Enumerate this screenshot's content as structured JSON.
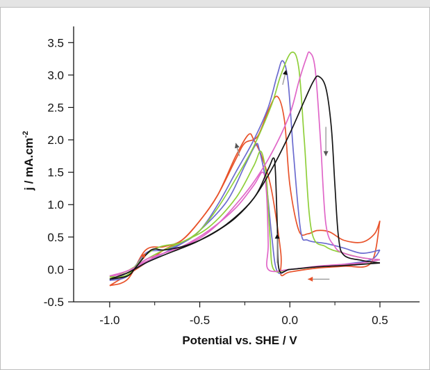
{
  "chart_data": {
    "type": "line",
    "title": "",
    "xlabel": "Potential vs. SHE / V",
    "ylabel_main": "j / mA.cm",
    "ylabel_sup": "-2",
    "xlim": [
      -1.2,
      0.72
    ],
    "ylim": [
      -0.5,
      3.75
    ],
    "x_ticks": [
      -1.0,
      -0.5,
      0.0,
      0.5
    ],
    "x_tick_labels": [
      "-1.0",
      "-0.5",
      "0.0",
      "0.5"
    ],
    "y_ticks": [
      -0.5,
      0.0,
      0.5,
      1.0,
      1.5,
      2.0,
      2.5,
      3.0,
      3.5
    ],
    "y_tick_labels": [
      "-0.5",
      "0.0",
      "0.5",
      "1.0",
      "1.5",
      "2.0",
      "2.5",
      "3.0",
      "3.5"
    ],
    "grid": false,
    "legend": "none",
    "series": [
      {
        "color": "#e8522a",
        "forward": [
          [
            -1.0,
            -0.25
          ],
          [
            -0.9,
            -0.15
          ],
          [
            -0.8,
            0.3
          ],
          [
            -0.7,
            0.35
          ],
          [
            -0.6,
            0.45
          ],
          [
            -0.5,
            0.75
          ],
          [
            -0.4,
            1.15
          ],
          [
            -0.3,
            1.7
          ],
          [
            -0.25,
            1.95
          ],
          [
            -0.18,
            2.05
          ],
          [
            -0.12,
            2.45
          ],
          [
            -0.07,
            2.67
          ],
          [
            -0.03,
            2.3
          ],
          [
            0.0,
            1.3
          ],
          [
            0.05,
            0.6
          ],
          [
            0.1,
            0.55
          ],
          [
            0.15,
            0.6
          ],
          [
            0.22,
            0.58
          ],
          [
            0.3,
            0.45
          ],
          [
            0.4,
            0.42
          ],
          [
            0.47,
            0.55
          ],
          [
            0.5,
            0.75
          ]
        ],
        "reverse": [
          [
            0.5,
            0.75
          ],
          [
            0.45,
            0.1
          ],
          [
            0.3,
            0.05
          ],
          [
            0.15,
            0.02
          ],
          [
            0.0,
            -0.04
          ],
          [
            -0.05,
            -0.08
          ],
          [
            -0.05,
            0.25
          ],
          [
            -0.1,
            1.2
          ],
          [
            -0.15,
            1.7
          ],
          [
            -0.2,
            2.0
          ],
          [
            -0.23,
            2.08
          ],
          [
            -0.3,
            1.75
          ],
          [
            -0.4,
            1.15
          ],
          [
            -0.5,
            0.75
          ],
          [
            -0.6,
            0.45
          ],
          [
            -0.7,
            0.3
          ],
          [
            -0.8,
            0.1
          ],
          [
            -0.9,
            -0.08
          ],
          [
            -1.0,
            -0.25
          ]
        ]
      },
      {
        "color": "#6b6bcf",
        "forward": [
          [
            -1.0,
            -0.17
          ],
          [
            -0.9,
            -0.1
          ],
          [
            -0.8,
            0.25
          ],
          [
            -0.7,
            0.3
          ],
          [
            -0.6,
            0.4
          ],
          [
            -0.5,
            0.6
          ],
          [
            -0.4,
            1.0
          ],
          [
            -0.3,
            1.5
          ],
          [
            -0.2,
            2.0
          ],
          [
            -0.12,
            2.5
          ],
          [
            -0.07,
            3.0
          ],
          [
            -0.04,
            3.22
          ],
          [
            -0.01,
            2.9
          ],
          [
            0.02,
            1.8
          ],
          [
            0.06,
            0.6
          ],
          [
            0.1,
            0.45
          ],
          [
            0.2,
            0.4
          ],
          [
            0.3,
            0.33
          ],
          [
            0.4,
            0.25
          ],
          [
            0.5,
            0.3
          ]
        ],
        "reverse": [
          [
            0.5,
            0.3
          ],
          [
            0.45,
            0.15
          ],
          [
            0.3,
            0.08
          ],
          [
            0.15,
            0.04
          ],
          [
            0.0,
            0.0
          ],
          [
            -0.07,
            -0.03
          ],
          [
            -0.1,
            0.5
          ],
          [
            -0.13,
            1.3
          ],
          [
            -0.17,
            1.85
          ],
          [
            -0.19,
            1.92
          ],
          [
            -0.25,
            1.6
          ],
          [
            -0.35,
            1.05
          ],
          [
            -0.5,
            0.6
          ],
          [
            -0.6,
            0.4
          ],
          [
            -0.7,
            0.25
          ],
          [
            -0.8,
            0.1
          ],
          [
            -0.9,
            -0.05
          ],
          [
            -1.0,
            -0.17
          ]
        ]
      },
      {
        "color": "#8fcf3a",
        "forward": [
          [
            -1.0,
            -0.12
          ],
          [
            -0.9,
            -0.08
          ],
          [
            -0.8,
            0.22
          ],
          [
            -0.72,
            0.35
          ],
          [
            -0.6,
            0.42
          ],
          [
            -0.5,
            0.6
          ],
          [
            -0.4,
            0.95
          ],
          [
            -0.3,
            1.4
          ],
          [
            -0.2,
            1.9
          ],
          [
            -0.1,
            2.55
          ],
          [
            -0.05,
            3.0
          ],
          [
            0.01,
            3.35
          ],
          [
            0.05,
            3.1
          ],
          [
            0.08,
            2.0
          ],
          [
            0.12,
            0.6
          ],
          [
            0.2,
            0.35
          ],
          [
            0.3,
            0.25
          ],
          [
            0.4,
            0.18
          ],
          [
            0.5,
            0.15
          ]
        ],
        "reverse": [
          [
            0.5,
            0.15
          ],
          [
            0.4,
            0.1
          ],
          [
            0.3,
            0.07
          ],
          [
            0.15,
            0.04
          ],
          [
            0.0,
            0.0
          ],
          [
            -0.09,
            0.0
          ],
          [
            -0.11,
            0.5
          ],
          [
            -0.13,
            1.4
          ],
          [
            -0.16,
            1.82
          ],
          [
            -0.2,
            1.6
          ],
          [
            -0.3,
            1.1
          ],
          [
            -0.45,
            0.65
          ],
          [
            -0.6,
            0.42
          ],
          [
            -0.7,
            0.3
          ],
          [
            -0.8,
            0.15
          ],
          [
            -0.9,
            -0.02
          ],
          [
            -1.0,
            -0.12
          ]
        ]
      },
      {
        "color": "#e066c8",
        "forward": [
          [
            -1.0,
            -0.1
          ],
          [
            -0.9,
            -0.05
          ],
          [
            -0.8,
            0.15
          ],
          [
            -0.7,
            0.25
          ],
          [
            -0.6,
            0.35
          ],
          [
            -0.5,
            0.48
          ],
          [
            -0.4,
            0.7
          ],
          [
            -0.3,
            1.0
          ],
          [
            -0.2,
            1.35
          ],
          [
            -0.1,
            1.8
          ],
          [
            0.0,
            2.4
          ],
          [
            0.05,
            2.9
          ],
          [
            0.09,
            3.25
          ],
          [
            0.11,
            3.35
          ],
          [
            0.14,
            3.1
          ],
          [
            0.17,
            2.0
          ],
          [
            0.2,
            0.7
          ],
          [
            0.25,
            0.35
          ],
          [
            0.3,
            0.25
          ],
          [
            0.4,
            0.18
          ],
          [
            0.5,
            0.15
          ]
        ],
        "reverse": [
          [
            0.5,
            0.15
          ],
          [
            0.4,
            0.1
          ],
          [
            0.3,
            0.08
          ],
          [
            0.15,
            0.05
          ],
          [
            0.0,
            0.0
          ],
          [
            -0.12,
            0.0
          ],
          [
            -0.12,
            0.4
          ],
          [
            -0.13,
            1.2
          ],
          [
            -0.15,
            1.5
          ],
          [
            -0.2,
            1.3
          ],
          [
            -0.3,
            0.95
          ],
          [
            -0.45,
            0.6
          ],
          [
            -0.6,
            0.35
          ],
          [
            -0.7,
            0.25
          ],
          [
            -0.8,
            0.12
          ],
          [
            -0.9,
            -0.02
          ],
          [
            -1.0,
            -0.1
          ]
        ]
      },
      {
        "color": "#141414",
        "forward": [
          [
            -1.0,
            -0.15
          ],
          [
            -0.9,
            -0.1
          ],
          [
            -0.85,
            0.05
          ],
          [
            -0.77,
            0.3
          ],
          [
            -0.7,
            0.3
          ],
          [
            -0.6,
            0.35
          ],
          [
            -0.5,
            0.45
          ],
          [
            -0.4,
            0.6
          ],
          [
            -0.3,
            0.8
          ],
          [
            -0.2,
            1.1
          ],
          [
            -0.1,
            1.55
          ],
          [
            0.0,
            2.1
          ],
          [
            0.08,
            2.6
          ],
          [
            0.13,
            2.9
          ],
          [
            0.16,
            2.98
          ],
          [
            0.2,
            2.8
          ],
          [
            0.23,
            2.2
          ],
          [
            0.25,
            1.3
          ],
          [
            0.27,
            0.5
          ],
          [
            0.3,
            0.22
          ],
          [
            0.4,
            0.14
          ],
          [
            0.5,
            0.1
          ]
        ],
        "reverse": [
          [
            0.5,
            0.1
          ],
          [
            0.4,
            0.08
          ],
          [
            0.3,
            0.06
          ],
          [
            0.15,
            0.04
          ],
          [
            0.0,
            0.0
          ],
          [
            -0.06,
            0.0
          ],
          [
            -0.07,
            0.7
          ],
          [
            -0.08,
            1.5
          ],
          [
            -0.09,
            1.72
          ],
          [
            -0.12,
            1.55
          ],
          [
            -0.2,
            1.1
          ],
          [
            -0.35,
            0.7
          ],
          [
            -0.5,
            0.45
          ],
          [
            -0.6,
            0.33
          ],
          [
            -0.7,
            0.22
          ],
          [
            -0.8,
            0.1
          ],
          [
            -0.9,
            -0.05
          ],
          [
            -1.0,
            -0.15
          ]
        ]
      }
    ],
    "arrows": [
      {
        "from": [
          -0.86,
          0.05
        ],
        "to": [
          -0.8,
          0.25
        ],
        "color": "#999999",
        "head": "#e8522a"
      },
      {
        "from": [
          -0.28,
          1.75
        ],
        "to": [
          -0.3,
          1.95
        ],
        "color": "#999999",
        "head": "#555555"
      },
      {
        "from": [
          -0.04,
          2.85
        ],
        "to": [
          -0.02,
          3.08
        ],
        "color": "#999999",
        "head": "#111111"
      },
      {
        "from": [
          0.2,
          2.2
        ],
        "to": [
          0.2,
          1.75
        ],
        "color": "#999999",
        "head": "#555555"
      },
      {
        "from": [
          -0.07,
          0.1
        ],
        "to": [
          -0.07,
          0.55
        ],
        "color": "#999999",
        "head": "#111111"
      },
      {
        "from": [
          0.22,
          -0.15
        ],
        "to": [
          0.1,
          -0.15
        ],
        "color": "#999999",
        "head": "#e8522a"
      }
    ]
  }
}
